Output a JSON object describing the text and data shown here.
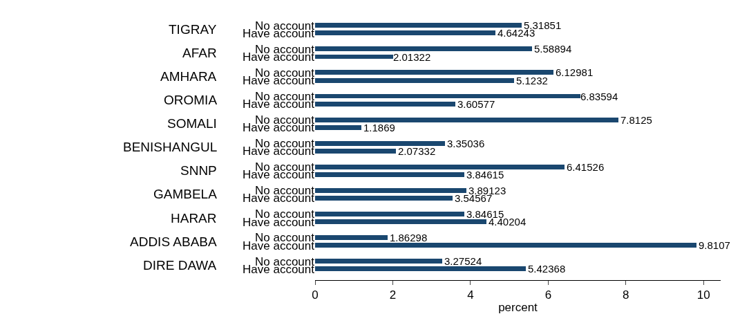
{
  "chart_data": {
    "type": "bar",
    "orientation": "horizontal",
    "xlabel": "percent",
    "categories": [
      "No account",
      "Have account",
      "No account",
      "Have account",
      "No account",
      "Have account",
      "No account",
      "Have account",
      "No account",
      "Have account",
      "No account",
      "Have account",
      "No account",
      "Have account",
      "No account",
      "Have account",
      "No account",
      "Have account",
      "No account",
      "Have account",
      "No account",
      "Have account"
    ],
    "values": [
      5.31851,
      4.64243,
      5.58894,
      2.01322,
      6.12981,
      5.1232,
      6.83594,
      3.60577,
      7.8125,
      1.1869,
      3.35036,
      2.07332,
      6.41526,
      3.84615,
      3.89123,
      3.54567,
      3.84615,
      4.40204,
      1.86298,
      9.8107,
      3.27524,
      5.42368
    ],
    "color": "#1a476f",
    "data_labels": true,
    "annotations": [
      "TIGRAY",
      "AFAR",
      "AMHARA",
      "OROMIA",
      "SOMALI",
      "BENISHANGUL",
      "SNNP",
      "GAMBELA",
      "HARAR",
      "ADDIS ABABA",
      "DIRE DAWA"
    ],
    "xlim": [
      0,
      10.44
    ],
    "xticks": [
      0,
      2,
      4,
      6,
      8,
      10
    ],
    "legend": false
  }
}
